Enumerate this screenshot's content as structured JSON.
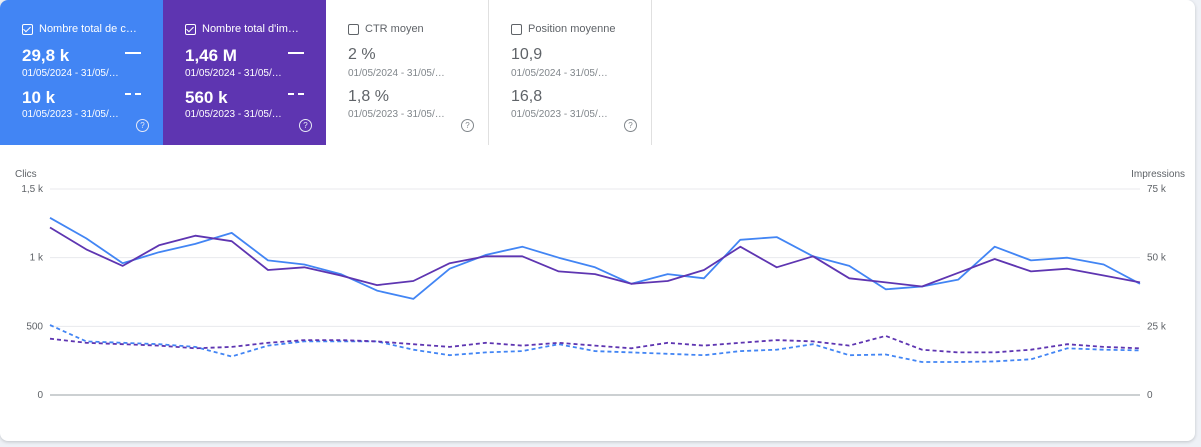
{
  "metrics": [
    {
      "label": "Nombre total de c…",
      "value_current": "29,8 k",
      "date_current": "01/05/2024 - 31/05/…",
      "value_previous": "10 k",
      "date_previous": "01/05/2023 - 31/05/…",
      "checked": true,
      "color": "#4285f4"
    },
    {
      "label": "Nombre total d'im…",
      "value_current": "1,46 M",
      "date_current": "01/05/2024 - 31/05/…",
      "value_previous": "560 k",
      "date_previous": "01/05/2023 - 31/05/…",
      "checked": true,
      "color": "#5e35b1"
    },
    {
      "label": "CTR moyen",
      "value_current": "2 %",
      "date_current": "01/05/2024 - 31/05/…",
      "value_previous": "1,8 %",
      "date_previous": "01/05/2023 - 31/05/…",
      "checked": false
    },
    {
      "label": "Position moyenne",
      "value_current": "10,9",
      "date_current": "01/05/2024 - 31/05/…",
      "value_previous": "16,8",
      "date_previous": "01/05/2023 - 31/05/…",
      "checked": false
    }
  ],
  "help_glyph": "?",
  "chart_data": {
    "type": "line",
    "ylabel_left": "Clics",
    "ylabel_right": "Impressions",
    "x": [
      1,
      2,
      3,
      4,
      5,
      6,
      7,
      8,
      9,
      10,
      11,
      12,
      13,
      14,
      15,
      16,
      17,
      18,
      19,
      20,
      21,
      22,
      23,
      24,
      25,
      26,
      27,
      28,
      29,
      30,
      31
    ],
    "x_ticks": [
      "3",
      "6",
      "9",
      "12",
      "15",
      "18",
      "21",
      "24",
      "27",
      "30"
    ],
    "x_tick_values": [
      3,
      6,
      9,
      12,
      15,
      18,
      21,
      24,
      27,
      30
    ],
    "y_left_ticks": [
      "0",
      "500",
      "1 k",
      "1,5 k"
    ],
    "y_left_tick_values": [
      0,
      500,
      1000,
      1500
    ],
    "y_right_ticks": [
      "0",
      "25 k",
      "50 k",
      "75 k"
    ],
    "y_right_tick_values": [
      0,
      25000,
      50000,
      75000
    ],
    "ylim_left": [
      0,
      1500
    ],
    "ylim_right": [
      0,
      75000
    ],
    "grid": true,
    "series": [
      {
        "axis": "left",
        "dashed": false,
        "color": "#4285f4",
        "values": [
          1290,
          1140,
          960,
          1040,
          1100,
          1180,
          980,
          950,
          880,
          760,
          700,
          920,
          1020,
          1080,
          1000,
          930,
          810,
          880,
          850,
          1130,
          1150,
          1010,
          940,
          770,
          790,
          840,
          1080,
          980,
          1000,
          950,
          810
        ]
      },
      {
        "axis": "right",
        "dashed": false,
        "color": "#5e35b1",
        "values": [
          61000,
          53000,
          47000,
          54500,
          58000,
          56000,
          45500,
          46500,
          43500,
          40000,
          41500,
          48000,
          50500,
          50500,
          45000,
          44000,
          40500,
          41500,
          45500,
          54000,
          46500,
          50500,
          42500,
          41000,
          39500,
          44500,
          49500,
          45000,
          46000,
          43500,
          41000
        ]
      },
      {
        "axis": "left",
        "dashed": true,
        "color": "#4285f4",
        "values": [
          510,
          390,
          380,
          370,
          350,
          280,
          360,
          390,
          390,
          390,
          330,
          290,
          310,
          320,
          370,
          320,
          310,
          300,
          290,
          320,
          330,
          370,
          290,
          295,
          240,
          240,
          245,
          260,
          340,
          330,
          325
        ]
      },
      {
        "axis": "right",
        "dashed": true,
        "color": "#5e35b1",
        "values": [
          20500,
          19000,
          18500,
          18000,
          17000,
          17500,
          19000,
          20000,
          20000,
          19500,
          18500,
          17500,
          19000,
          18000,
          19000,
          18000,
          17000,
          19000,
          18000,
          19000,
          20000,
          19500,
          18000,
          21500,
          16500,
          15500,
          15500,
          16500,
          18500,
          17500,
          17000
        ]
      }
    ]
  }
}
